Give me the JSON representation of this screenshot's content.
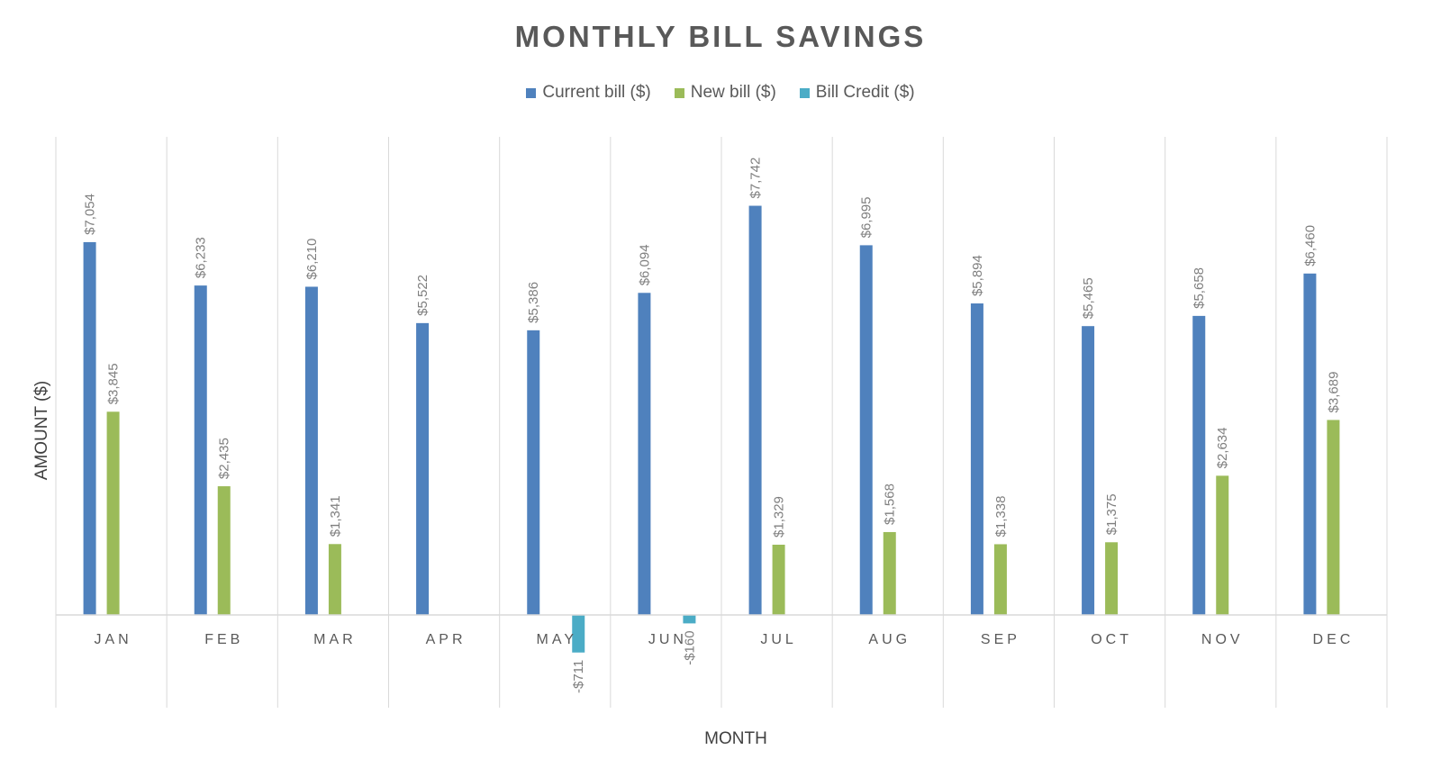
{
  "chart_data": {
    "type": "bar",
    "title": "MONTHLY BILL SAVINGS",
    "xlabel": "MONTH",
    "ylabel": "AMOUNT ($)",
    "categories": [
      "JAN",
      "FEB",
      "MAR",
      "APR",
      "MAY",
      "JUN",
      "JUL",
      "AUG",
      "SEP",
      "OCT",
      "NOV",
      "DEC"
    ],
    "series": [
      {
        "name": "Current bill ($)",
        "color": "#4F81BD",
        "values": [
          7054,
          6233,
          6210,
          5522,
          5386,
          6094,
          7742,
          6995,
          5894,
          5465,
          5658,
          6460
        ],
        "labels": [
          "$7,054",
          "$6,233",
          "$6,210",
          "$5,522",
          "$5,386",
          "$6,094",
          "$7,742",
          "$6,995",
          "$5,894",
          "$5,465",
          "$5,658",
          "$6,460"
        ]
      },
      {
        "name": "New bill ($)",
        "color": "#9BBB59",
        "values": [
          3845,
          2435,
          1341,
          null,
          null,
          null,
          1329,
          1568,
          1338,
          1375,
          2634,
          3689
        ],
        "labels": [
          "$3,845",
          "$2,435",
          "$1,341",
          null,
          null,
          null,
          "$1,329",
          "$1,568",
          "$1,338",
          "$1,375",
          "$2,634",
          "$3,689"
        ]
      },
      {
        "name": "Bill Credit ($)",
        "color": "#4BACC6",
        "values": [
          null,
          null,
          null,
          null,
          -711,
          -160,
          null,
          null,
          null,
          null,
          null,
          null
        ],
        "labels": [
          null,
          null,
          null,
          null,
          "-$711",
          "-$160",
          null,
          null,
          null,
          null,
          null,
          null
        ]
      }
    ],
    "legend_position": "top",
    "grid": "vertical category separators",
    "ylim": [
      -2000,
      9000
    ]
  }
}
